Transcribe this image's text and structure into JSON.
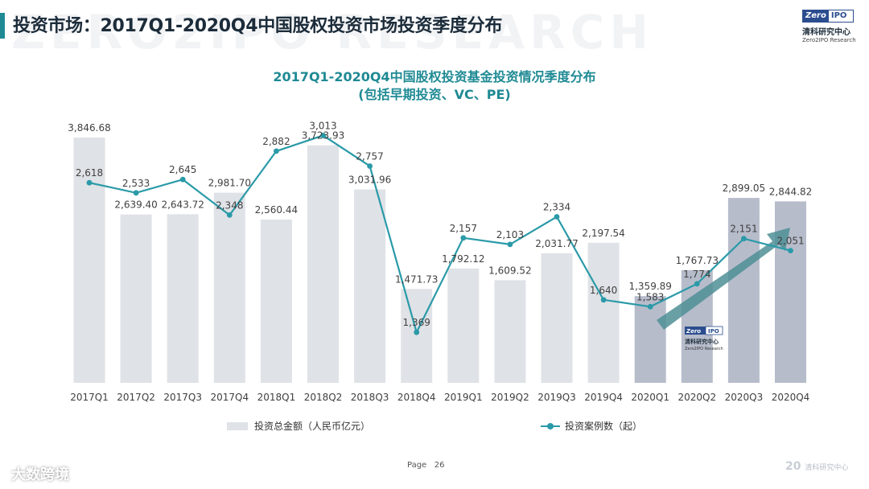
{
  "slide": {
    "title": "投资市场：2017Q1-2020Q4中国股权投资市场投资季度分布",
    "page_label": "Page",
    "page_number": "26",
    "background_text": "ZERO2IPO RESEARCH"
  },
  "logo": {
    "mark_left": "Zero",
    "mark_right": "IPO",
    "name_cn": "清科研究中心",
    "name_en": "Zero2IPO Research"
  },
  "inner_logo": {
    "mark_left": "Zero",
    "mark_right": "IPO",
    "name_cn": "清科研究中心",
    "name_en": "Zero2IPO Research"
  },
  "watermarks": {
    "left": "大数跨境",
    "right_mark": "20",
    "right_text": "清科研究中心"
  },
  "colors": {
    "bar": "#dfe2e6",
    "bar_highlight": "#b7bccb",
    "line": "#2a9aa8",
    "title_teal": "#1f8a94",
    "arrow": "#4f8f96"
  },
  "chart_data": {
    "type": "bar+line",
    "title": "2017Q1-2020Q4中国股权投资基金投资情况季度分布",
    "subtitle": "(包括早期投资、VC、PE)",
    "categories": [
      "2017Q1",
      "2017Q2",
      "2017Q3",
      "2017Q4",
      "2018Q1",
      "2018Q2",
      "2018Q3",
      "2018Q4",
      "2019Q1",
      "2019Q2",
      "2019Q3",
      "2019Q4",
      "2020Q1",
      "2020Q2",
      "2020Q3",
      "2020Q4"
    ],
    "series": [
      {
        "name": "投资总金额（人民币亿元）",
        "type": "bar",
        "values": [
          3846.68,
          2639.4,
          2643.72,
          2981.7,
          2560.44,
          3723.93,
          3031.96,
          1471.73,
          1792.12,
          1609.52,
          2031.77,
          2197.54,
          1359.89,
          1767.73,
          2899.05,
          2844.82
        ],
        "labels": [
          "3,846.68",
          "2,639.40",
          "2,643.72",
          "2,981.70",
          "2,560.44",
          "3,723.93",
          "3,031.96",
          "1,471.73",
          "1,792.12",
          "1,609.52",
          "2,031.77",
          "2,197.54",
          "1,359.89",
          "1,767.73",
          "2,899.05",
          "2,844.82"
        ],
        "highlight_from_index": 12
      },
      {
        "name": "投资案例数（起）",
        "type": "line",
        "values": [
          2618,
          2533,
          2645,
          2348,
          2882,
          3013,
          2757,
          1369,
          2157,
          2103,
          2334,
          1640,
          1583,
          1774,
          2151,
          2051
        ],
        "labels": [
          "2,618",
          "2,533",
          "2,645",
          "2,348",
          "2,882",
          "3,013",
          "2,757",
          "1,369",
          "2,157",
          "2,103",
          "2,334",
          "1,640",
          "1,583",
          "1,774",
          "2,151",
          "2,051"
        ]
      }
    ],
    "bar_ylim": [
      0,
      4200
    ],
    "line_ylim": [
      0,
      3300
    ],
    "legend_position": "bottom",
    "annotation": "upward trend arrow over 2020Q1-2020Q4"
  }
}
